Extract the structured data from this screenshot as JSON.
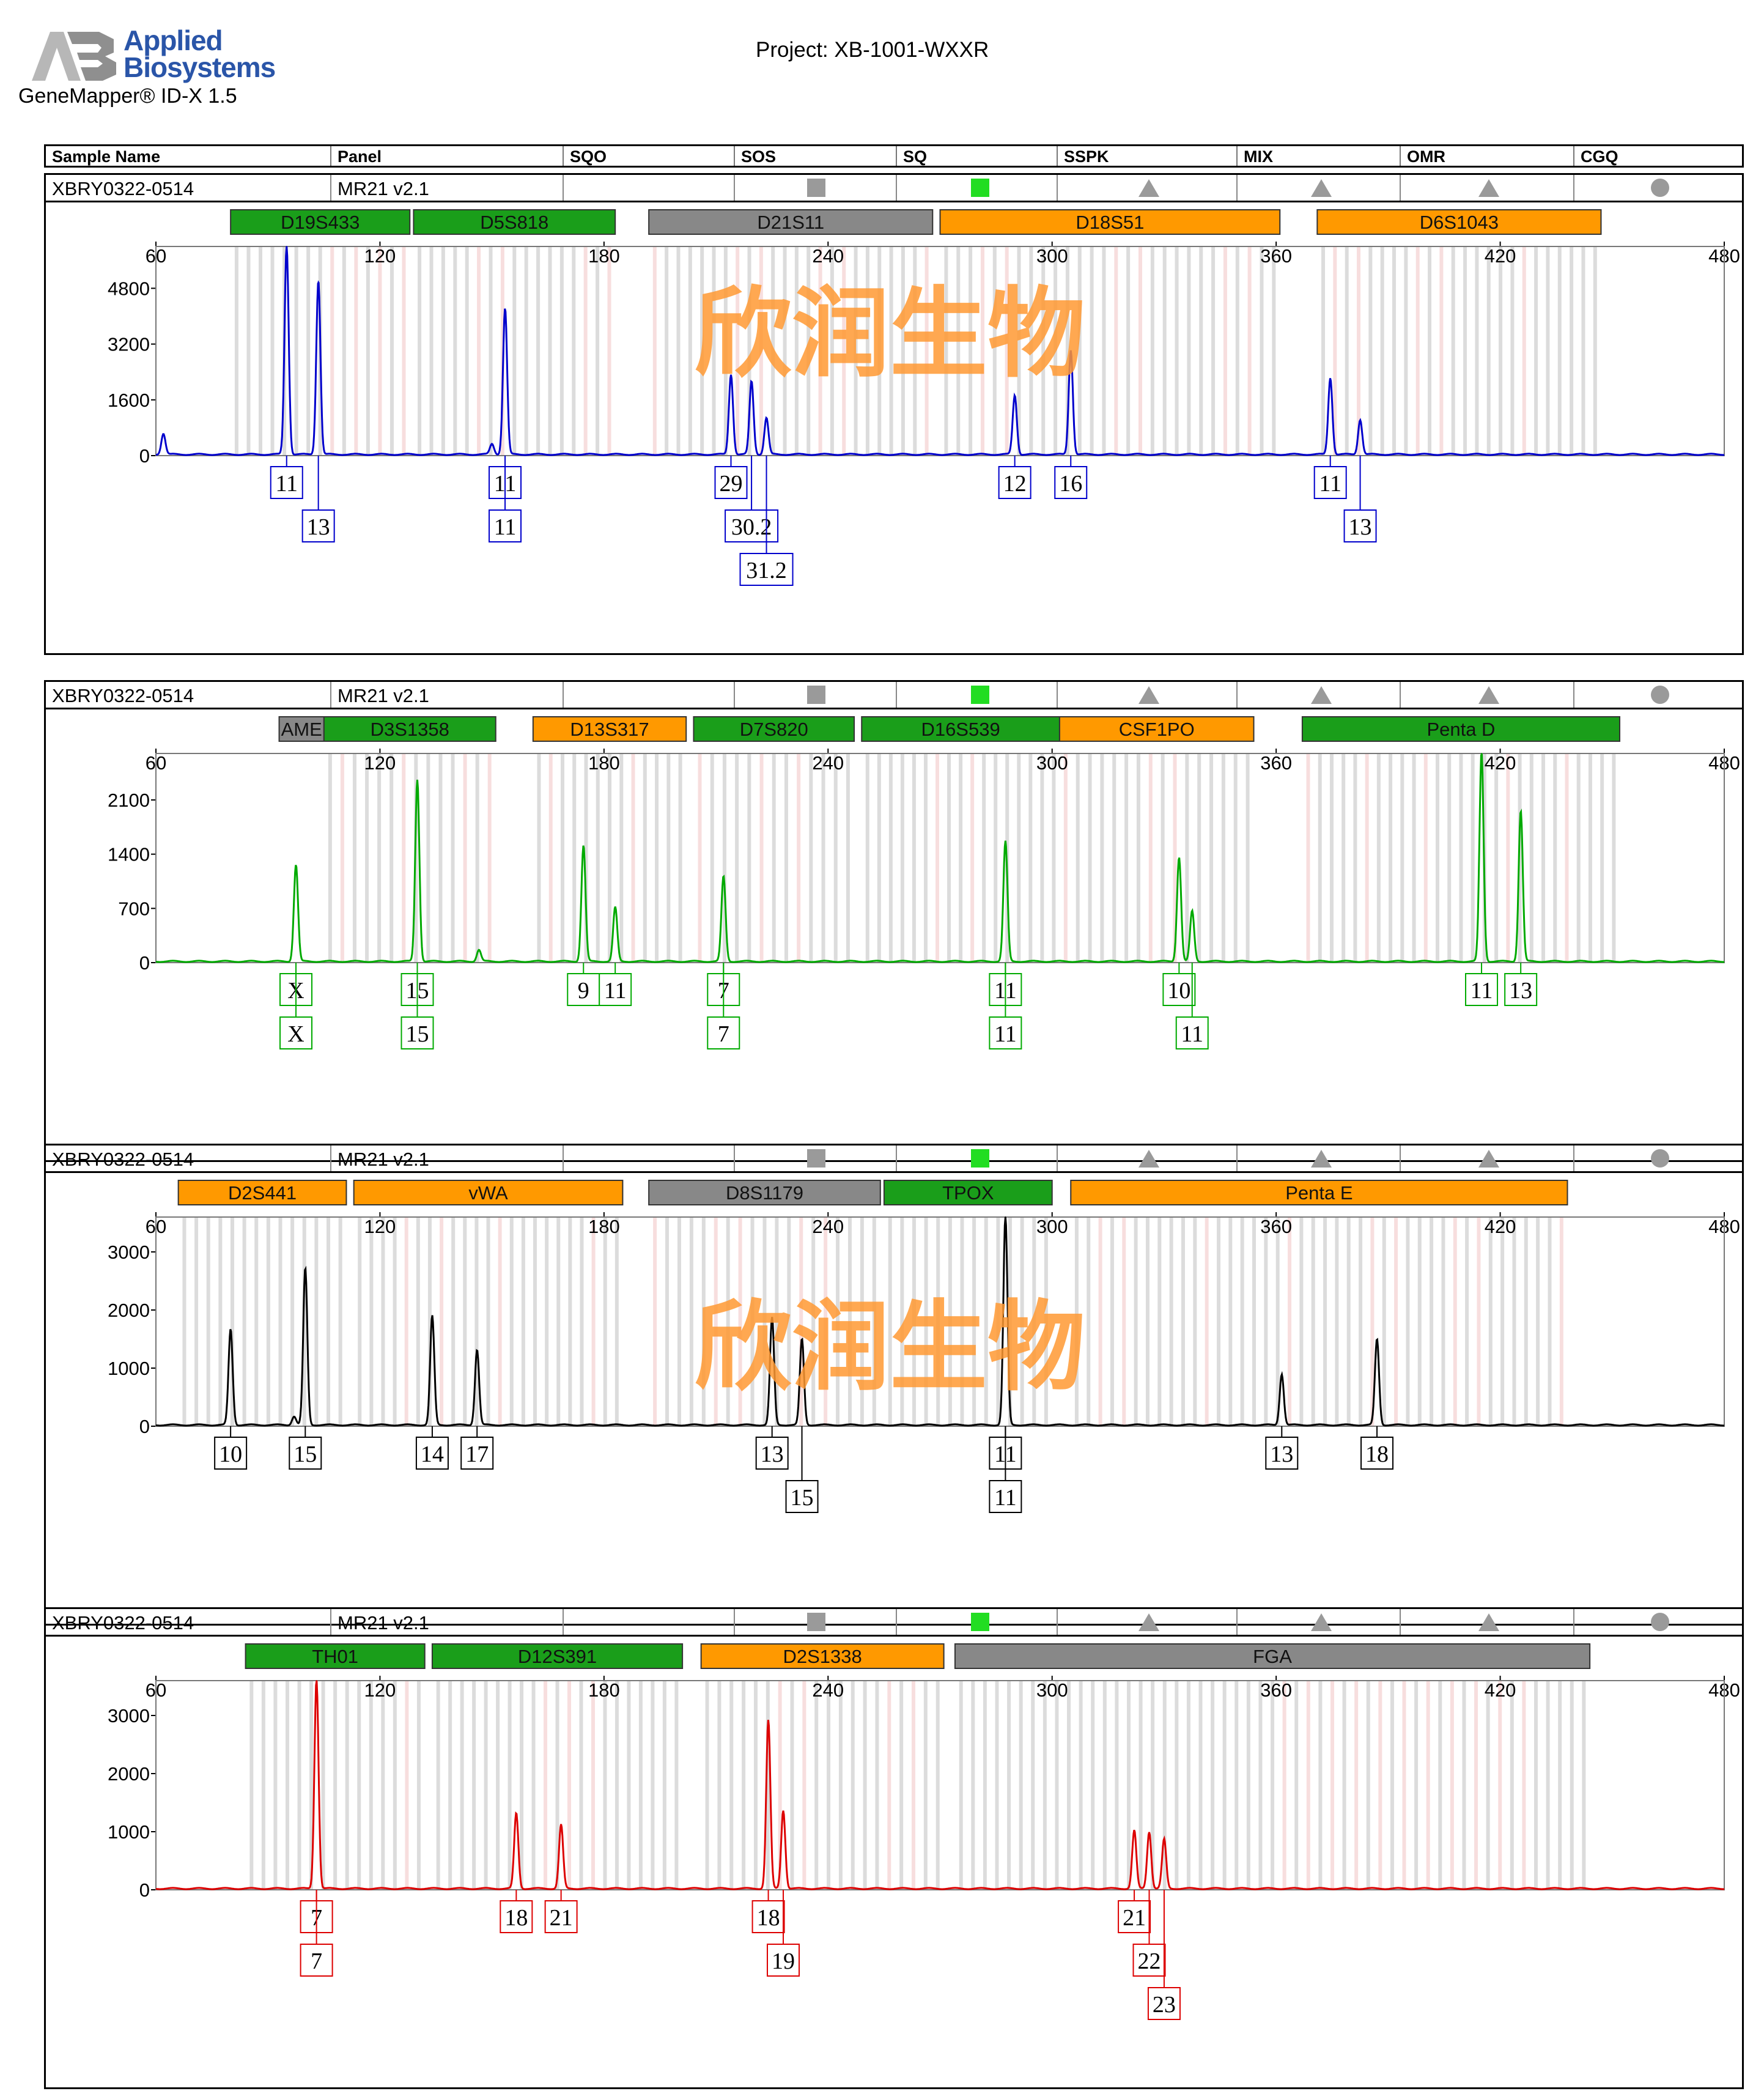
{
  "header": {
    "brand_line1": "Applied",
    "brand_line2": "Biosystems",
    "app_name": "GeneMapper® ID-X  1.5",
    "project": "Project: XB-1001-WXXR"
  },
  "columns": [
    "Sample Name",
    "Panel",
    "SQO",
    "SOS",
    "SQ",
    "SSPK",
    "MIX",
    "OMR",
    "CGQ"
  ],
  "colors": {
    "marker_green": "#1a9e1a",
    "marker_orange": "#ff9900",
    "marker_gray": "#888888",
    "flag_gray": "#9a9a9a",
    "flag_green": "#22dd22"
  },
  "watermark": "欣润生物",
  "chart_data": [
    {
      "type": "line",
      "sample": "XBRY0322-0514",
      "panel": "MR21  v2.1",
      "color": "#0000cc",
      "x_ticks": [
        60,
        120,
        180,
        240,
        300,
        360,
        420,
        480
      ],
      "y_ticks": [
        0,
        1600,
        3200,
        4800
      ],
      "ylim": [
        0,
        6000
      ],
      "xlim": [
        60,
        480
      ],
      "markers": [
        {
          "name": "D19S433",
          "start": 80,
          "end": 128,
          "color": "green"
        },
        {
          "name": "D5S818",
          "start": 129,
          "end": 183,
          "color": "green"
        },
        {
          "name": "D21S11",
          "start": 192,
          "end": 268,
          "color": "gray"
        },
        {
          "name": "D18S51",
          "start": 270,
          "end": 361,
          "color": "orange"
        },
        {
          "name": "D6S1043",
          "start": 371,
          "end": 447,
          "color": "orange"
        }
      ],
      "peaks": [
        {
          "x": 95,
          "y": 6000
        },
        {
          "x": 103.5,
          "y": 5000
        },
        {
          "x": 153.5,
          "y": 4200
        },
        {
          "x": 214,
          "y": 2300
        },
        {
          "x": 219.5,
          "y": 2100
        },
        {
          "x": 223.5,
          "y": 1050
        },
        {
          "x": 290,
          "y": 1700
        },
        {
          "x": 305,
          "y": 3000
        },
        {
          "x": 374.5,
          "y": 2200
        },
        {
          "x": 382.5,
          "y": 1000
        },
        {
          "x": 62,
          "y": 600
        },
        {
          "x": 150,
          "y": 300
        }
      ],
      "alleles": [
        {
          "x": 95,
          "label": "11",
          "row": 0
        },
        {
          "x": 103.5,
          "label": "13",
          "row": 1
        },
        {
          "x": 153.5,
          "label": "11",
          "row": 0
        },
        {
          "x": 153.5,
          "label": "11",
          "row": 1
        },
        {
          "x": 214,
          "label": "29",
          "row": 0
        },
        {
          "x": 219.5,
          "label": "30.2",
          "row": 1
        },
        {
          "x": 223.5,
          "label": "31.2",
          "row": 2
        },
        {
          "x": 290,
          "label": "12",
          "row": 0
        },
        {
          "x": 305,
          "label": "16",
          "row": 0
        },
        {
          "x": 374.5,
          "label": "11",
          "row": 0
        },
        {
          "x": 382.5,
          "label": "13",
          "row": 1
        }
      ]
    },
    {
      "type": "line",
      "sample": "XBRY0322-0514",
      "panel": "MR21  v2.1",
      "color": "#00aa00",
      "x_ticks": [
        60,
        120,
        180,
        240,
        300,
        360,
        420,
        480
      ],
      "y_ticks": [
        0,
        700,
        1400,
        2100
      ],
      "ylim": [
        0,
        2700
      ],
      "xlim": [
        60,
        480
      ],
      "markers": [
        {
          "name": "AME",
          "start": 93,
          "end": 105,
          "color": "gray"
        },
        {
          "name": "D3S1358",
          "start": 105,
          "end": 151,
          "color": "green"
        },
        {
          "name": "D13S317",
          "start": 161,
          "end": 202,
          "color": "orange"
        },
        {
          "name": "D7S820",
          "start": 204,
          "end": 247,
          "color": "green"
        },
        {
          "name": "D16S539",
          "start": 249,
          "end": 302,
          "color": "green"
        },
        {
          "name": "CSF1PO",
          "start": 302,
          "end": 354,
          "color": "orange"
        },
        {
          "name": "Penta D",
          "start": 367,
          "end": 452,
          "color": "green"
        }
      ],
      "peaks": [
        {
          "x": 97.5,
          "y": 1250
        },
        {
          "x": 130,
          "y": 2350
        },
        {
          "x": 174.5,
          "y": 1500
        },
        {
          "x": 183,
          "y": 700
        },
        {
          "x": 212,
          "y": 1100
        },
        {
          "x": 287.5,
          "y": 1550
        },
        {
          "x": 334,
          "y": 1350
        },
        {
          "x": 337.5,
          "y": 650
        },
        {
          "x": 415,
          "y": 2700
        },
        {
          "x": 425.5,
          "y": 1950
        },
        {
          "x": 146.5,
          "y": 150
        }
      ],
      "alleles": [
        {
          "x": 97.5,
          "label": "X",
          "row": 0
        },
        {
          "x": 97.5,
          "label": "X",
          "row": 1
        },
        {
          "x": 130,
          "label": "15",
          "row": 0
        },
        {
          "x": 130,
          "label": "15",
          "row": 1
        },
        {
          "x": 174.5,
          "label": "9",
          "row": 0
        },
        {
          "x": 183,
          "label": "11",
          "row": 0
        },
        {
          "x": 212,
          "label": "7",
          "row": 0
        },
        {
          "x": 212,
          "label": "7",
          "row": 1
        },
        {
          "x": 287.5,
          "label": "11",
          "row": 0
        },
        {
          "x": 287.5,
          "label": "11",
          "row": 1
        },
        {
          "x": 334,
          "label": "10",
          "row": 0
        },
        {
          "x": 337.5,
          "label": "11",
          "row": 1
        },
        {
          "x": 415,
          "label": "11",
          "row": 0
        },
        {
          "x": 425.5,
          "label": "13",
          "row": 0
        }
      ]
    },
    {
      "type": "line",
      "sample": "XBRY0322-0514",
      "panel": "MR21  v2.1",
      "color": "#000000",
      "x_ticks": [
        60,
        120,
        180,
        240,
        300,
        360,
        420,
        480
      ],
      "y_ticks": [
        0,
        1000,
        2000,
        3000
      ],
      "ylim": [
        0,
        3600
      ],
      "xlim": [
        60,
        480
      ],
      "markers": [
        {
          "name": "D2S441",
          "start": 66,
          "end": 111,
          "color": "orange"
        },
        {
          "name": "vWA",
          "start": 113,
          "end": 185,
          "color": "orange"
        },
        {
          "name": "D8S1179",
          "start": 192,
          "end": 254,
          "color": "gray"
        },
        {
          "name": "TPOX",
          "start": 255,
          "end": 300,
          "color": "green"
        },
        {
          "name": "Penta E",
          "start": 305,
          "end": 438,
          "color": "orange"
        }
      ],
      "peaks": [
        {
          "x": 80,
          "y": 1650
        },
        {
          "x": 100,
          "y": 2700
        },
        {
          "x": 134,
          "y": 1880
        },
        {
          "x": 146,
          "y": 1300
        },
        {
          "x": 225,
          "y": 1850
        },
        {
          "x": 233,
          "y": 1480
        },
        {
          "x": 287.5,
          "y": 3600
        },
        {
          "x": 361.5,
          "y": 880
        },
        {
          "x": 387,
          "y": 1480
        },
        {
          "x": 97,
          "y": 150
        }
      ],
      "alleles": [
        {
          "x": 80,
          "label": "10",
          "row": 0
        },
        {
          "x": 100,
          "label": "15",
          "row": 0
        },
        {
          "x": 134,
          "label": "14",
          "row": 0
        },
        {
          "x": 146,
          "label": "17",
          "row": 0
        },
        {
          "x": 225,
          "label": "13",
          "row": 0
        },
        {
          "x": 233,
          "label": "15",
          "row": 1
        },
        {
          "x": 287.5,
          "label": "11",
          "row": 0
        },
        {
          "x": 287.5,
          "label": "11",
          "row": 1
        },
        {
          "x": 361.5,
          "label": "13",
          "row": 0
        },
        {
          "x": 387,
          "label": "18",
          "row": 0
        }
      ]
    },
    {
      "type": "line",
      "sample": "XBRY0322-0514",
      "panel": "MR21  v2.1",
      "color": "#dd0000",
      "x_ticks": [
        60,
        120,
        180,
        240,
        300,
        360,
        420,
        480
      ],
      "y_ticks": [
        0,
        1000,
        2000,
        3000
      ],
      "ylim": [
        0,
        3600
      ],
      "xlim": [
        60,
        480
      ],
      "markers": [
        {
          "name": "TH01",
          "start": 84,
          "end": 132,
          "color": "green"
        },
        {
          "name": "D12S391",
          "start": 134,
          "end": 201,
          "color": "green"
        },
        {
          "name": "D2S1338",
          "start": 206,
          "end": 271,
          "color": "orange"
        },
        {
          "name": "FGA",
          "start": 274,
          "end": 444,
          "color": "gray"
        }
      ],
      "peaks": [
        {
          "x": 103,
          "y": 3600
        },
        {
          "x": 156.5,
          "y": 1300
        },
        {
          "x": 168.5,
          "y": 1100
        },
        {
          "x": 224,
          "y": 2900
        },
        {
          "x": 228,
          "y": 1350
        },
        {
          "x": 322,
          "y": 1000
        },
        {
          "x": 326,
          "y": 980
        },
        {
          "x": 330,
          "y": 850
        }
      ],
      "alleles": [
        {
          "x": 103,
          "label": "7",
          "row": 0
        },
        {
          "x": 103,
          "label": "7",
          "row": 1
        },
        {
          "x": 156.5,
          "label": "18",
          "row": 0
        },
        {
          "x": 168.5,
          "label": "21",
          "row": 0
        },
        {
          "x": 224,
          "label": "18",
          "row": 0
        },
        {
          "x": 228,
          "label": "19",
          "row": 1
        },
        {
          "x": 322,
          "label": "21",
          "row": 0
        },
        {
          "x": 326,
          "label": "22",
          "row": 1
        },
        {
          "x": 330,
          "label": "23",
          "row": 2
        }
      ]
    }
  ]
}
